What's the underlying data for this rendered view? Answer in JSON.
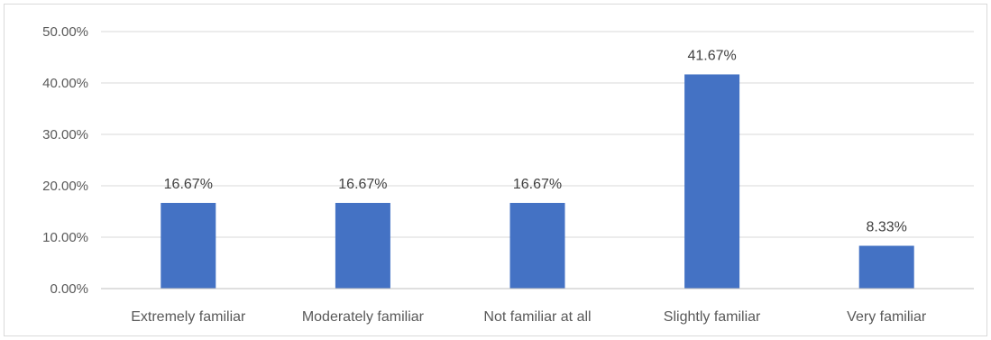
{
  "chart_data": {
    "type": "bar",
    "title": "",
    "xlabel": "",
    "ylabel": "",
    "categories": [
      "Extremely familiar",
      "Moderately familiar",
      "Not familiar at all",
      "Slightly familiar",
      "Very familiar"
    ],
    "values": [
      16.67,
      16.67,
      16.67,
      41.67,
      8.33
    ],
    "data_labels": [
      "16.67%",
      "16.67%",
      "16.67%",
      "41.67%",
      "8.33%"
    ],
    "ylim": [
      0,
      50
    ],
    "yticks": [
      0,
      10,
      20,
      30,
      40,
      50
    ],
    "ytick_labels": [
      "0.00%",
      "10.00%",
      "20.00%",
      "30.00%",
      "40.00%",
      "50.00%"
    ],
    "grid": true,
    "legend": "none",
    "colors": {
      "bar": "#4472C4",
      "grid": "#d9d9d9",
      "axis": "#bfbfbf"
    }
  }
}
